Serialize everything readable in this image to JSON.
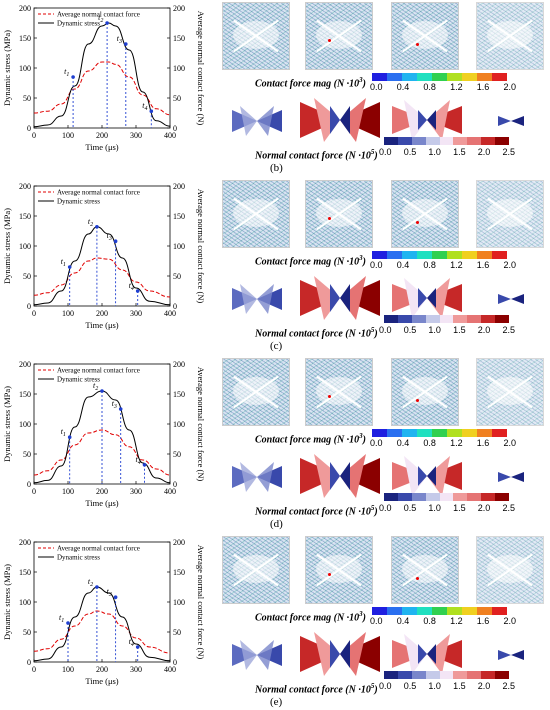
{
  "common": {
    "ylabel_left": "Dynamic stress (MPa)",
    "ylabel_right": "Average normal contact force (N)",
    "xlabel": "Time (μs)",
    "legend_force": "Average normal contact force",
    "legend_stress": "Dynamic stress",
    "contact_mag_label": "Contact force mag",
    "contact_mag_unit": "(N ·10",
    "contact_mag_exp": "3",
    "normal_label": "Normal contact force",
    "normal_unit": "(N ·10",
    "normal_exp": "5",
    "close_paren": ")",
    "mag_ticks": [
      "0.0",
      "0.4",
      "0.8",
      "1.2",
      "1.6",
      "2.0"
    ],
    "normal_ticks": [
      "0.0",
      "0.5",
      "1.0",
      "1.5",
      "2.0",
      "2.5"
    ],
    "mag_colors": [
      "#1f1fe0",
      "#2a6ff0",
      "#20b4f0",
      "#20e0c0",
      "#30d050",
      "#b0e020",
      "#f0d020",
      "#f08020",
      "#e02020"
    ],
    "normal_colors": [
      "#1a237e",
      "#3949ab",
      "#7986cb",
      "#c5cae9",
      "#f3e5f5",
      "#ef9a9a",
      "#e57373",
      "#c62828",
      "#8b0000"
    ],
    "stress_color": "#000000",
    "force_color": "#e00000",
    "marker_color": "#1f3fd0"
  },
  "panels": [
    {
      "caption": "(b)",
      "t_labels": [
        "t1",
        "t2",
        "t3",
        "t4"
      ]
    },
    {
      "caption": "(c)",
      "t_labels": [
        "t1",
        "t2",
        "t3",
        "t4"
      ]
    },
    {
      "caption": "(d)",
      "t_labels": [
        "t1",
        "t2",
        "t3",
        "t4"
      ]
    },
    {
      "caption": "(e)",
      "t_labels": [
        "t1",
        "t2",
        "t3",
        "t4"
      ]
    }
  ],
  "chart_data": [
    {
      "type": "line",
      "panel": "b",
      "xlim": [
        0,
        400
      ],
      "ylim": [
        0,
        200
      ],
      "y2lim": [
        0,
        200
      ],
      "xticks": [
        0,
        100,
        200,
        300,
        400
      ],
      "yticks": [
        0,
        50,
        100,
        150,
        200
      ],
      "series": [
        {
          "name": "Dynamic stress",
          "x": [
            0,
            40,
            80,
            120,
            160,
            200,
            220,
            240,
            280,
            320,
            360,
            400
          ],
          "y": [
            2,
            5,
            20,
            70,
            140,
            170,
            175,
            170,
            130,
            60,
            12,
            3
          ]
        },
        {
          "name": "Average normal contact force",
          "x": [
            0,
            40,
            80,
            120,
            160,
            200,
            220,
            240,
            280,
            320,
            360,
            400
          ],
          "y": [
            25,
            28,
            40,
            65,
            95,
            110,
            110,
            106,
            85,
            55,
            32,
            22
          ]
        }
      ],
      "markers": [
        {
          "label": "t1",
          "x": 115,
          "y": 85
        },
        {
          "label": "t2",
          "x": 215,
          "y": 175
        },
        {
          "label": "t3",
          "x": 270,
          "y": 140
        },
        {
          "label": "t4",
          "x": 345,
          "y": 28
        }
      ]
    },
    {
      "type": "line",
      "panel": "c",
      "xlim": [
        0,
        400
      ],
      "ylim": [
        0,
        200
      ],
      "y2lim": [
        0,
        200
      ],
      "xticks": [
        0,
        100,
        200,
        300,
        400
      ],
      "yticks": [
        0,
        50,
        100,
        150,
        200
      ],
      "series": [
        {
          "name": "Dynamic stress",
          "x": [
            0,
            40,
            80,
            120,
            160,
            185,
            220,
            260,
            300,
            340,
            400
          ],
          "y": [
            2,
            5,
            25,
            75,
            120,
            132,
            120,
            80,
            30,
            8,
            2
          ]
        },
        {
          "name": "Average normal contact force",
          "x": [
            0,
            40,
            80,
            120,
            160,
            185,
            220,
            260,
            300,
            340,
            400
          ],
          "y": [
            18,
            22,
            35,
            55,
            75,
            80,
            78,
            60,
            40,
            25,
            15
          ]
        }
      ],
      "markers": [
        {
          "label": "t1",
          "x": 105,
          "y": 65
        },
        {
          "label": "t2",
          "x": 185,
          "y": 132
        },
        {
          "label": "t3",
          "x": 240,
          "y": 108
        },
        {
          "label": "t4",
          "x": 305,
          "y": 25
        }
      ]
    },
    {
      "type": "line",
      "panel": "d",
      "xlim": [
        0,
        400
      ],
      "ylim": [
        0,
        200
      ],
      "y2lim": [
        0,
        200
      ],
      "xticks": [
        0,
        100,
        200,
        300,
        400
      ],
      "yticks": [
        0,
        50,
        100,
        150,
        200
      ],
      "series": [
        {
          "name": "Dynamic stress",
          "x": [
            0,
            40,
            80,
            120,
            160,
            200,
            240,
            280,
            320,
            360,
            400
          ],
          "y": [
            2,
            6,
            30,
            95,
            145,
            155,
            140,
            90,
            35,
            10,
            2
          ]
        },
        {
          "name": "Average normal contact force",
          "x": [
            0,
            40,
            80,
            120,
            160,
            200,
            240,
            280,
            320,
            360,
            400
          ],
          "y": [
            15,
            22,
            40,
            65,
            85,
            90,
            82,
            62,
            40,
            25,
            15
          ]
        }
      ],
      "markers": [
        {
          "label": "t1",
          "x": 105,
          "y": 78
        },
        {
          "label": "t2",
          "x": 200,
          "y": 155
        },
        {
          "label": "t3",
          "x": 255,
          "y": 125
        },
        {
          "label": "t4",
          "x": 325,
          "y": 32
        }
      ]
    },
    {
      "type": "line",
      "panel": "e",
      "xlim": [
        0,
        400
      ],
      "ylim": [
        0,
        200
      ],
      "y2lim": [
        0,
        200
      ],
      "xticks": [
        0,
        100,
        200,
        300,
        400
      ],
      "yticks": [
        0,
        50,
        100,
        150,
        200
      ],
      "series": [
        {
          "name": "Dynamic stress",
          "x": [
            0,
            40,
            80,
            120,
            160,
            185,
            220,
            260,
            300,
            340,
            400
          ],
          "y": [
            2,
            5,
            25,
            75,
            115,
            125,
            115,
            75,
            30,
            8,
            2
          ]
        },
        {
          "name": "Average normal contact force",
          "x": [
            0,
            40,
            80,
            120,
            160,
            185,
            220,
            260,
            300,
            340,
            400
          ],
          "y": [
            18,
            22,
            38,
            60,
            80,
            85,
            80,
            60,
            40,
            25,
            15
          ]
        }
      ],
      "markers": [
        {
          "label": "t1",
          "x": 100,
          "y": 65
        },
        {
          "label": "t2",
          "x": 185,
          "y": 125
        },
        {
          "label": "t3",
          "x": 240,
          "y": 108
        },
        {
          "label": "t4",
          "x": 305,
          "y": 25
        }
      ]
    }
  ]
}
